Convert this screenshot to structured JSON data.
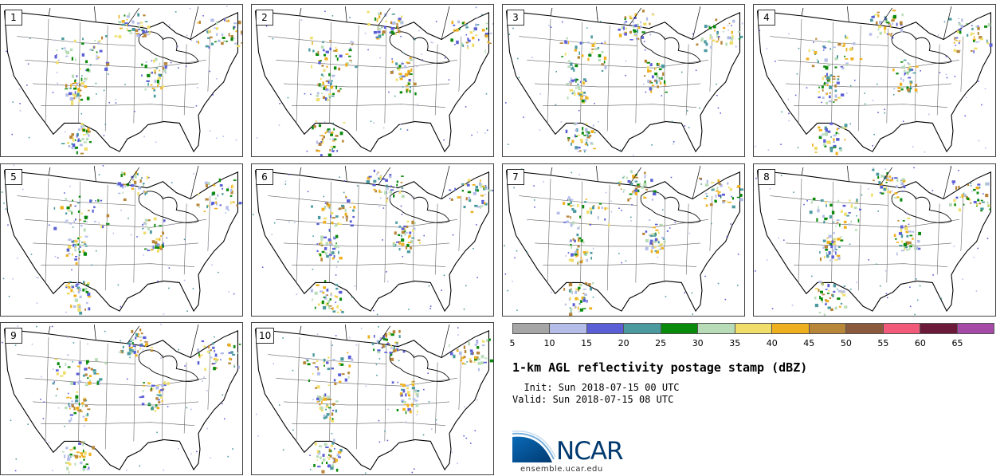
{
  "panels": [
    {
      "label": "1"
    },
    {
      "label": "2"
    },
    {
      "label": "3"
    },
    {
      "label": "4"
    },
    {
      "label": "5"
    },
    {
      "label": "6"
    },
    {
      "label": "7"
    },
    {
      "label": "8"
    },
    {
      "label": "9"
    },
    {
      "label": "10"
    }
  ],
  "colorbar": {
    "colors": [
      "#a6a6a6",
      "#b3bde8",
      "#5b5fd6",
      "#4b9aa0",
      "#0a8a0a",
      "#b8dcb8",
      "#f0de6a",
      "#eeb01e",
      "#b88638",
      "#8b5a3c",
      "#f25a7a",
      "#6b1a3a",
      "#a64aa8"
    ],
    "ticks": [
      "5",
      "10",
      "15",
      "20",
      "25",
      "30",
      "35",
      "40",
      "45",
      "50",
      "55",
      "60",
      "65"
    ]
  },
  "title": "1-km AGL reflectivity postage stamp (dBZ)",
  "init": "  Init: Sun 2018-07-15 00 UTC",
  "valid": "Valid: Sun 2018-07-15 08 UTC",
  "logo": {
    "name": "NCAR"
  },
  "site": "ensemble.ucar.edu"
}
